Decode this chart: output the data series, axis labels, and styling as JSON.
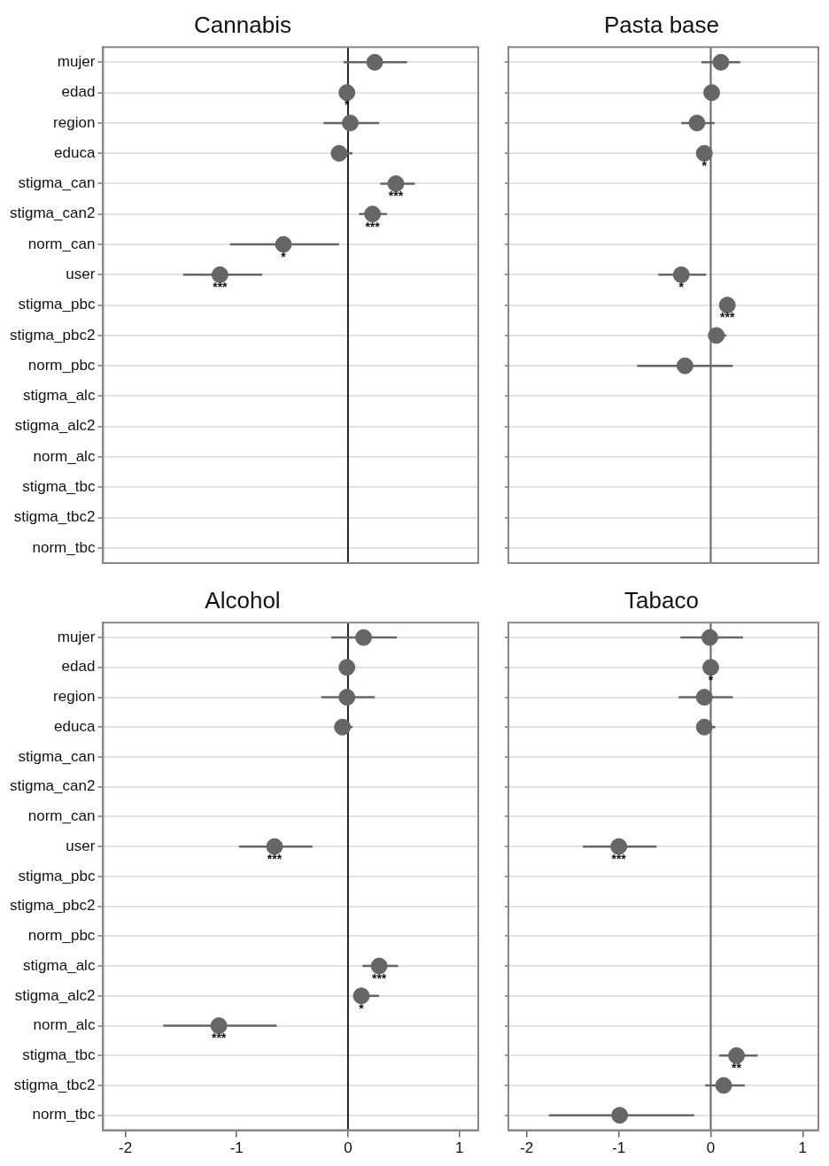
{
  "chart_data": [
    {
      "type": "scatter",
      "title": "Cannabis",
      "orientation": "horizontal",
      "categories": [
        "mujer",
        "edad",
        "region",
        "educa",
        "stigma_can",
        "stigma_can2",
        "norm_can",
        "user",
        "stigma_pbc",
        "stigma_pbc2",
        "norm_pbc",
        "stigma_alc",
        "stigma_alc2",
        "norm_alc",
        "stigma_tbc",
        "stigma_tbc2",
        "norm_tbc"
      ],
      "values": [
        0.24,
        -0.01,
        0.02,
        -0.08,
        0.43,
        0.22,
        -0.58,
        -1.15,
        null,
        null,
        null,
        null,
        null,
        null,
        null,
        null,
        null
      ],
      "errors": [
        [
          -0.04,
          0.53
        ],
        null,
        [
          -0.22,
          0.28
        ],
        [
          -0.12,
          0.04
        ],
        [
          0.29,
          0.6
        ],
        [
          0.1,
          0.35
        ],
        [
          -1.06,
          -0.08
        ],
        [
          -1.48,
          -0.77
        ],
        null,
        null,
        null,
        null,
        null,
        null,
        null,
        null,
        null
      ],
      "color": "#666666",
      "marker": "circle",
      "grid": "y",
      "xlim": [
        -2.2,
        1.17
      ],
      "xticks": [
        -2,
        -1,
        0,
        1
      ],
      "tick_labels": "y",
      "ref_lines": [
        {
          "axis": "x",
          "value": 0,
          "color": "#222222"
        }
      ],
      "annotations": [
        {
          "text": "*",
          "x": -0.01,
          "y": "edad"
        },
        {
          "text": "***",
          "x": 0.43,
          "y": "stigma_can"
        },
        {
          "text": "***",
          "x": 0.22,
          "y": "stigma_can2"
        },
        {
          "text": "*",
          "x": -0.58,
          "y": "norm_can"
        },
        {
          "text": "***",
          "x": -1.15,
          "y": "user"
        }
      ]
    },
    {
      "type": "scatter",
      "title": "Pasta base",
      "orientation": "horizontal",
      "categories": [
        "mujer",
        "edad",
        "region",
        "educa",
        "stigma_can",
        "stigma_can2",
        "norm_can",
        "user",
        "stigma_pbc",
        "stigma_pbc2",
        "norm_pbc",
        "stigma_alc",
        "stigma_alc2",
        "norm_alc",
        "stigma_tbc",
        "stigma_tbc2",
        "norm_tbc"
      ],
      "values": [
        0.11,
        0.01,
        -0.15,
        -0.07,
        null,
        null,
        null,
        -0.32,
        0.18,
        0.06,
        -0.28,
        null,
        null,
        null,
        null,
        null,
        null
      ],
      "errors": [
        [
          -0.1,
          0.32
        ],
        null,
        [
          -0.32,
          0.04
        ],
        null,
        null,
        null,
        null,
        [
          -0.57,
          -0.05
        ],
        null,
        [
          0.0,
          0.17
        ],
        [
          -0.8,
          0.24
        ],
        null,
        null,
        null,
        null,
        null,
        null
      ],
      "color": "#666666",
      "marker": "circle",
      "grid": "y",
      "xlim": [
        -2.2,
        1.17
      ],
      "xticks": [
        -2,
        -1,
        0,
        1
      ],
      "tick_labels": false,
      "ref_lines": [
        {
          "axis": "x",
          "value": 0,
          "color": "#666666"
        }
      ],
      "annotations": [
        {
          "text": "*",
          "x": -0.07,
          "y": "educa"
        },
        {
          "text": "*",
          "x": -0.32,
          "y": "user"
        },
        {
          "text": "***",
          "x": 0.18,
          "y": "stigma_pbc"
        }
      ]
    },
    {
      "type": "scatter",
      "title": "Alcohol",
      "orientation": "horizontal",
      "categories": [
        "mujer",
        "edad",
        "region",
        "educa",
        "stigma_can",
        "stigma_can2",
        "norm_can",
        "user",
        "stigma_pbc",
        "stigma_pbc2",
        "norm_pbc",
        "stigma_alc",
        "stigma_alc2",
        "norm_alc",
        "stigma_tbc",
        "stigma_tbc2",
        "norm_tbc"
      ],
      "values": [
        0.14,
        -0.01,
        -0.01,
        -0.05,
        null,
        null,
        null,
        -0.66,
        null,
        null,
        null,
        0.28,
        0.12,
        -1.16,
        null,
        null,
        null
      ],
      "errors": [
        [
          -0.15,
          0.44
        ],
        null,
        [
          -0.24,
          0.24
        ],
        [
          -0.1,
          0.04
        ],
        null,
        null,
        null,
        [
          -0.98,
          -0.32
        ],
        null,
        null,
        null,
        [
          0.13,
          0.45
        ],
        [
          0.05,
          0.28
        ],
        [
          -1.66,
          -0.64
        ],
        null,
        null,
        null
      ],
      "color": "#666666",
      "marker": "circle",
      "grid": "y",
      "xlim": [
        -2.2,
        1.17
      ],
      "xticks": [
        -2,
        -1,
        0,
        1
      ],
      "ref_lines": [
        {
          "axis": "x",
          "value": 0,
          "color": "#222222"
        }
      ],
      "annotations": [
        {
          "text": "***",
          "x": -0.66,
          "y": "user"
        },
        {
          "text": "***",
          "x": 0.28,
          "y": "stigma_alc"
        },
        {
          "text": "*",
          "x": 0.12,
          "y": "stigma_alc2"
        },
        {
          "text": "***",
          "x": -1.16,
          "y": "norm_alc"
        }
      ]
    },
    {
      "type": "scatter",
      "title": "Tabaco",
      "orientation": "horizontal",
      "categories": [
        "mujer",
        "edad",
        "region",
        "educa",
        "stigma_can",
        "stigma_can2",
        "norm_can",
        "user",
        "stigma_pbc",
        "stigma_pbc2",
        "norm_pbc",
        "stigma_alc",
        "stigma_alc2",
        "norm_alc",
        "stigma_tbc",
        "stigma_tbc2",
        "norm_tbc"
      ],
      "values": [
        -0.01,
        0.0,
        -0.07,
        -0.07,
        null,
        null,
        null,
        -1.0,
        null,
        null,
        null,
        null,
        null,
        null,
        0.28,
        0.14,
        -0.99
      ],
      "errors": [
        [
          -0.33,
          0.35
        ],
        null,
        [
          -0.35,
          0.24
        ],
        [
          -0.07,
          0.05
        ],
        null,
        null,
        null,
        [
          -1.39,
          -0.59
        ],
        null,
        null,
        null,
        null,
        null,
        null,
        [
          0.09,
          0.51
        ],
        [
          -0.06,
          0.37
        ],
        [
          -1.76,
          -0.18
        ]
      ],
      "color": "#666666",
      "marker": "circle",
      "grid": "y",
      "xlim": [
        -2.2,
        1.17
      ],
      "xticks": [
        -2,
        -1,
        0,
        1
      ],
      "tick_labels": "x",
      "ref_lines": [
        {
          "axis": "x",
          "value": 0,
          "color": "#666666"
        }
      ],
      "annotations": [
        {
          "text": "*",
          "x": 0.0,
          "y": "edad"
        },
        {
          "text": "***",
          "x": -1.0,
          "y": "user"
        },
        {
          "text": "**",
          "x": 0.28,
          "y": "stigma_tbc"
        }
      ]
    }
  ]
}
